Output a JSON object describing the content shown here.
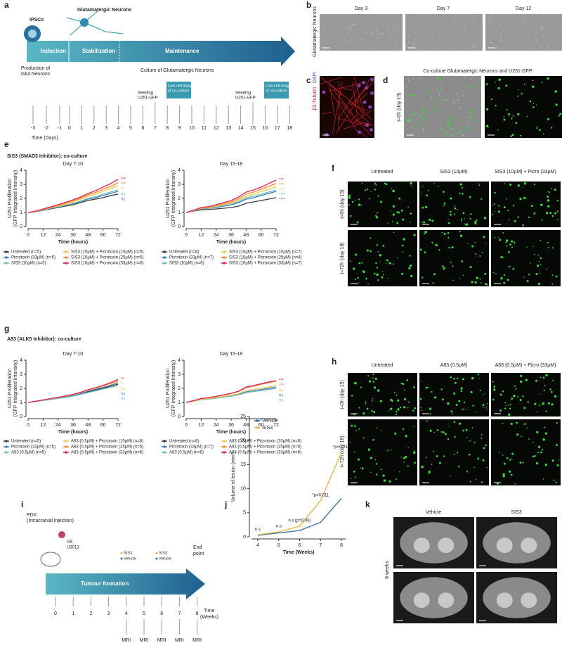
{
  "panel_labels": {
    "a": "a",
    "b": "b",
    "c": "c",
    "d": "d",
    "e": "e",
    "f": "f",
    "g": "g",
    "h": "h",
    "i": "i",
    "j": "j",
    "k": "k"
  },
  "figure_a": {
    "ipscs": "iPSCs",
    "neurons": "Glutamatergic Neurons",
    "phases": [
      "Induction",
      "Stabilization",
      "Maintenance"
    ],
    "production": [
      "Production of",
      "Glut Neurons"
    ],
    "culture": "Culture of Glutamatergic Neurons",
    "seeding": [
      "Seeding",
      "U251-GFP"
    ],
    "imaging": [
      "Live-cell imaging",
      "of co-culture"
    ],
    "days": [
      -3,
      -2,
      -1,
      0,
      1,
      2,
      3,
      4,
      5,
      6,
      7,
      8,
      9,
      10,
      11,
      12,
      13,
      14,
      15,
      16,
      17,
      18
    ],
    "axis_label": "Time (Days)"
  },
  "figure_b": {
    "columns": [
      "Day 3",
      "Day 7",
      "Day 12"
    ],
    "row_label": "Glutamatergic Neurons"
  },
  "figure_c": {
    "stain": "β3-Tubulin",
    "nuclear": "DAPI"
  },
  "figure_d": {
    "title": "Co-culture Glutamatergic Neurons and U251-GFP",
    "row_label": "t=0h (day 15)"
  },
  "section_e": "SIS3 (SMAD3 Inhibitor): co-culture",
  "section_g": "A83 (ALK5 Inhibitor): co-culture",
  "figure_f": {
    "columns": [
      "Untreated",
      "SIS3 (10µM)",
      "SIS3 (10µM) + Picro (33µM)"
    ],
    "rows": [
      "t=0h (day 15)",
      "t=72h (day 18)"
    ]
  },
  "figure_h": {
    "columns": [
      "Untreated",
      "A83 (0.5µM)",
      "A83 (0.5µM) + Picro (33µM)"
    ],
    "rows": [
      "t=0h (day 15)",
      "t=72h (day 18)"
    ]
  },
  "figure_i": {
    "pdx": [
      "PDX",
      "(Intracranial injection)"
    ],
    "line": [
      "G8",
      "U3013"
    ],
    "sis3": "SIS3",
    "vehicle": "Vehicle",
    "end": [
      "End",
      "point"
    ],
    "phase": "Tumour formation",
    "weeks": [
      0,
      1,
      2,
      3,
      4,
      5,
      6,
      7,
      8
    ],
    "axis_label": [
      "Time",
      "(Weeks)"
    ],
    "mri": "MRI"
  },
  "figure_k": {
    "columns": [
      "Vehicle",
      "SIS3"
    ],
    "row_label": "8 weeks"
  },
  "chart_data": [
    {
      "type": "line",
      "title": "Day 7-10",
      "x_label": "Time (hours)",
      "y_label": [
        "U251 Proliferation",
        "(GFP Integrated Intensity)"
      ],
      "x": [
        0,
        6,
        12,
        18,
        24,
        30,
        36,
        42,
        48,
        54,
        60,
        66,
        72
      ],
      "xlim": [
        0,
        72
      ],
      "xticks": [
        0,
        12,
        24,
        36,
        48,
        60,
        72
      ],
      "ylim": [
        0,
        4
      ],
      "yticks": [
        0,
        1,
        2,
        3,
        4
      ],
      "series": [
        {
          "name": "Untreated (n=5)",
          "color": "#3a3a3a",
          "values": [
            1,
            1.05,
            1.15,
            1.25,
            1.35,
            1.45,
            1.55,
            1.7,
            1.85,
            1.95,
            2.05,
            2.2,
            2.3
          ]
        },
        {
          "name": "Picrotoxin (33µM) (n=5)",
          "color": "#3f7fbf",
          "values": [
            1,
            1.06,
            1.17,
            1.28,
            1.38,
            1.5,
            1.62,
            1.78,
            1.95,
            2.05,
            2.2,
            2.35,
            2.5
          ]
        },
        {
          "name": "SIS3 (10µM) (n=5)",
          "color": "#6fc0b8",
          "values": [
            1,
            1.06,
            1.18,
            1.3,
            1.4,
            1.52,
            1.65,
            1.82,
            2.0,
            2.12,
            2.3,
            2.45,
            2.6
          ]
        },
        {
          "name": "SIS3 (10µM) + Picrotoxin (10µM) (n=6)",
          "color": "#f2c94c",
          "values": [
            1,
            1.08,
            1.2,
            1.33,
            1.45,
            1.6,
            1.75,
            1.95,
            2.15,
            2.3,
            2.5,
            2.7,
            2.9
          ]
        },
        {
          "name": "SIS3 (10µM) + Picrotoxin (25µM) (n=5)",
          "color": "#f08c30",
          "values": [
            1,
            1.08,
            1.22,
            1.35,
            1.5,
            1.65,
            1.82,
            2.02,
            2.25,
            2.42,
            2.65,
            2.85,
            3.1
          ]
        },
        {
          "name": "SIS3 (10µM) + Picrotoxin (33µM) (n=6)",
          "color": "#e0245e",
          "values": [
            1,
            1.1,
            1.25,
            1.4,
            1.55,
            1.72,
            1.9,
            2.1,
            2.35,
            2.55,
            2.8,
            3.05,
            3.35
          ]
        }
      ],
      "annotations": [
        {
          "text": "***",
          "color": "#e0245e"
        },
        {
          "text": "***",
          "color": "#f08c30"
        },
        {
          "text": "**",
          "color": "#f2c94c"
        },
        {
          "text": "ns",
          "color": "#6fc0b8"
        },
        {
          "text": "ns",
          "color": "#3f7fbf"
        }
      ]
    },
    {
      "type": "line",
      "title": "Day 15-18",
      "x_label": "Time (hours)",
      "y_label": [
        "U251 Proliferation",
        "(GFP Integrated Intensity)"
      ],
      "x": [
        0,
        6,
        12,
        18,
        24,
        30,
        36,
        42,
        48,
        54,
        60,
        66,
        72
      ],
      "xlim": [
        0,
        72
      ],
      "xticks": [
        0,
        12,
        24,
        36,
        48,
        60,
        72
      ],
      "ylim": [
        0,
        4
      ],
      "yticks": [
        0,
        1,
        2,
        3,
        4
      ],
      "series": [
        {
          "name": "Untreated (n=8)",
          "color": "#3a3a3a",
          "values": [
            1,
            1.1,
            1.18,
            1.22,
            1.25,
            1.3,
            1.35,
            1.45,
            1.65,
            1.75,
            1.85,
            1.95,
            2.05
          ]
        },
        {
          "name": "Picrotoxin (33µM) (n=7)",
          "color": "#3f7fbf",
          "values": [
            1,
            1.12,
            1.25,
            1.3,
            1.35,
            1.45,
            1.55,
            1.7,
            1.95,
            2.05,
            2.2,
            2.35,
            2.5
          ]
        },
        {
          "name": "SIS3 (10µM) (n=8)",
          "color": "#6fc0b8",
          "values": [
            1,
            1.12,
            1.27,
            1.32,
            1.4,
            1.5,
            1.6,
            1.78,
            2.05,
            2.15,
            2.3,
            2.45,
            2.6
          ]
        },
        {
          "name": "SIS3 (10µM) + Picrotoxin (10µM) (n=7)",
          "color": "#f2c94c",
          "values": [
            1,
            1.14,
            1.3,
            1.35,
            1.45,
            1.55,
            1.68,
            1.88,
            2.15,
            2.3,
            2.5,
            2.65,
            2.8
          ]
        },
        {
          "name": "SIS3 (10µM) + Picrotoxin (25µM) (n=8)",
          "color": "#f08c30",
          "values": [
            1,
            1.15,
            1.32,
            1.38,
            1.5,
            1.62,
            1.75,
            1.98,
            2.3,
            2.45,
            2.65,
            2.85,
            3.05
          ]
        },
        {
          "name": "SIS3 (10µM) + Picrotoxin (33µM) (n=7)",
          "color": "#e0245e",
          "values": [
            1,
            1.17,
            1.35,
            1.42,
            1.55,
            1.7,
            1.85,
            2.1,
            2.45,
            2.6,
            2.8,
            3.05,
            3.3
          ]
        }
      ],
      "annotations": [
        {
          "text": "***",
          "color": "#e0245e"
        },
        {
          "text": "***",
          "color": "#f08c30"
        },
        {
          "text": "***",
          "color": "#f2c94c"
        },
        {
          "text": "****",
          "color": "#6fc0b8"
        },
        {
          "text": "****",
          "color": "#3f7fbf"
        }
      ]
    },
    {
      "type": "line",
      "title": "Day 7-10",
      "x_label": "Time (hours)",
      "y_label": [
        "U251 Proliferation",
        "(GFP Integrated Intensity)"
      ],
      "x": [
        0,
        6,
        12,
        18,
        24,
        30,
        36,
        42,
        48,
        54,
        60,
        66,
        72
      ],
      "xlim": [
        0,
        72
      ],
      "xticks": [
        0,
        12,
        24,
        36,
        48,
        60,
        72
      ],
      "ylim": [
        0,
        4
      ],
      "yticks": [
        0,
        1,
        2,
        3,
        4
      ],
      "series": [
        {
          "name": "Untreated (n=5)",
          "color": "#3a3a3a",
          "values": [
            1,
            1.07,
            1.15,
            1.22,
            1.3,
            1.38,
            1.48,
            1.6,
            1.75,
            1.88,
            2.0,
            2.15,
            2.3
          ]
        },
        {
          "name": "Picrotoxin (33µM) (n=5)",
          "color": "#3f7fbf",
          "values": [
            1,
            1.07,
            1.16,
            1.24,
            1.32,
            1.4,
            1.5,
            1.63,
            1.8,
            1.93,
            2.07,
            2.22,
            2.4
          ]
        },
        {
          "name": "A83 (0.5µM) (n=5)",
          "color": "#6fc0b8",
          "values": [
            1,
            1.06,
            1.14,
            1.2,
            1.28,
            1.35,
            1.45,
            1.57,
            1.7,
            1.82,
            1.95,
            2.07,
            2.2
          ]
        },
        {
          "name": "A83 (0.5µM) + Picrotoxin (10µM) (n=6)",
          "color": "#f2c94c",
          "values": [
            1,
            1.08,
            1.17,
            1.26,
            1.35,
            1.44,
            1.55,
            1.7,
            1.87,
            2.0,
            2.17,
            2.33,
            2.5
          ]
        },
        {
          "name": "A83 (0.5µM) + Picrotoxin (25µM) (n=6)",
          "color": "#f08c30",
          "values": [
            1,
            1.08,
            1.18,
            1.27,
            1.37,
            1.46,
            1.57,
            1.72,
            1.9,
            2.05,
            2.22,
            2.4,
            2.65
          ]
        },
        {
          "name": "A83 (0.5µM) + Picrotoxin (33µM) (n=6)",
          "color": "#e0245e",
          "values": [
            1,
            1.08,
            1.18,
            1.27,
            1.36,
            1.46,
            1.57,
            1.72,
            1.9,
            2.04,
            2.2,
            2.38,
            2.6
          ]
        }
      ],
      "annotations": [
        {
          "text": "**",
          "color": "#e0245e"
        },
        {
          "text": "*",
          "color": "#f08c30"
        },
        {
          "text": "ns",
          "color": "#f2c94c"
        },
        {
          "text": "ns",
          "color": "#3f7fbf"
        },
        {
          "text": "ns",
          "color": "#6fc0b8"
        }
      ]
    },
    {
      "type": "line",
      "title": "Day 15-18",
      "x_label": "Time (hours)",
      "y_label": [
        "U251 Proliferation",
        "(GFP Integrated Intensity)"
      ],
      "x": [
        0,
        6,
        12,
        18,
        24,
        30,
        36,
        42,
        48,
        54,
        60,
        66,
        72
      ],
      "xlim": [
        0,
        72
      ],
      "xticks": [
        0,
        12,
        24,
        36,
        48,
        60,
        72
      ],
      "ylim": [
        0,
        4
      ],
      "yticks": [
        0,
        1,
        2,
        3,
        4
      ],
      "series": [
        {
          "name": "Untreated (n=8)",
          "color": "#3a3a3a",
          "values": [
            1,
            1.1,
            1.2,
            1.25,
            1.3,
            1.38,
            1.45,
            1.55,
            1.7,
            1.78,
            1.85,
            1.93,
            2.0
          ]
        },
        {
          "name": "Picrotoxin (33µM) (n=7)",
          "color": "#3f7fbf",
          "values": [
            1,
            1.1,
            1.22,
            1.27,
            1.33,
            1.4,
            1.48,
            1.58,
            1.75,
            1.83,
            1.92,
            2.0,
            2.1
          ]
        },
        {
          "name": "A83 (0.5µM) (n=8)",
          "color": "#6fc0b8",
          "values": [
            1,
            1.1,
            1.2,
            1.25,
            1.3,
            1.38,
            1.45,
            1.55,
            1.7,
            1.78,
            1.86,
            1.93,
            2.0
          ]
        },
        {
          "name": "A83 (0.5µM) + Picrotoxin (10µM) (n=8)",
          "color": "#f2c94c",
          "values": [
            1,
            1.11,
            1.23,
            1.28,
            1.35,
            1.43,
            1.52,
            1.63,
            1.82,
            1.92,
            2.02,
            2.1,
            2.2
          ]
        },
        {
          "name": "A83 (0.5µM) + Picrotoxin (25µM) (n=8)",
          "color": "#f08c30",
          "values": [
            1,
            1.13,
            1.27,
            1.33,
            1.42,
            1.52,
            1.63,
            1.78,
            2.05,
            2.15,
            2.28,
            2.4,
            2.5
          ]
        },
        {
          "name": "A83 (0.5µM) + Picrotoxin (33µM) (n=8)",
          "color": "#e0245e",
          "values": [
            1,
            1.13,
            1.28,
            1.34,
            1.43,
            1.54,
            1.65,
            1.8,
            2.1,
            2.2,
            2.33,
            2.45,
            2.55
          ]
        }
      ],
      "annotations": [
        {
          "text": "***",
          "color": "#e0245e"
        },
        {
          "text": "***",
          "color": "#f08c30"
        },
        {
          "text": "ns",
          "color": "#f2c94c"
        },
        {
          "text": "ns",
          "color": "#3f7fbf"
        },
        {
          "text": "ns",
          "color": "#6fc0b8"
        }
      ]
    },
    {
      "type": "line",
      "x_label": "Time (Weeks)",
      "y_label": [
        "Volume of lesion (mm³)"
      ],
      "x": [
        4,
        5,
        6,
        7,
        8
      ],
      "xlim": [
        3.7,
        8.2
      ],
      "xticks": [
        4,
        5,
        6,
        7,
        8
      ],
      "ylim": [
        0,
        25
      ],
      "yticks": [
        0,
        5,
        10,
        15,
        20,
        25
      ],
      "series": [
        {
          "name": "Vehicle",
          "color": "#2f6ea8",
          "values": [
            0.3,
            0.8,
            1.3,
            3,
            8
          ]
        },
        {
          "name": "SIS3",
          "color": "#e0b23a",
          "values": [
            0.4,
            1,
            2.2,
            7.5,
            17.5
          ]
        }
      ],
      "point_labels": [
        "n.s",
        "n.s",
        "n.s (p=0.06)",
        "*p=0.011",
        "*p=0.010"
      ]
    }
  ]
}
